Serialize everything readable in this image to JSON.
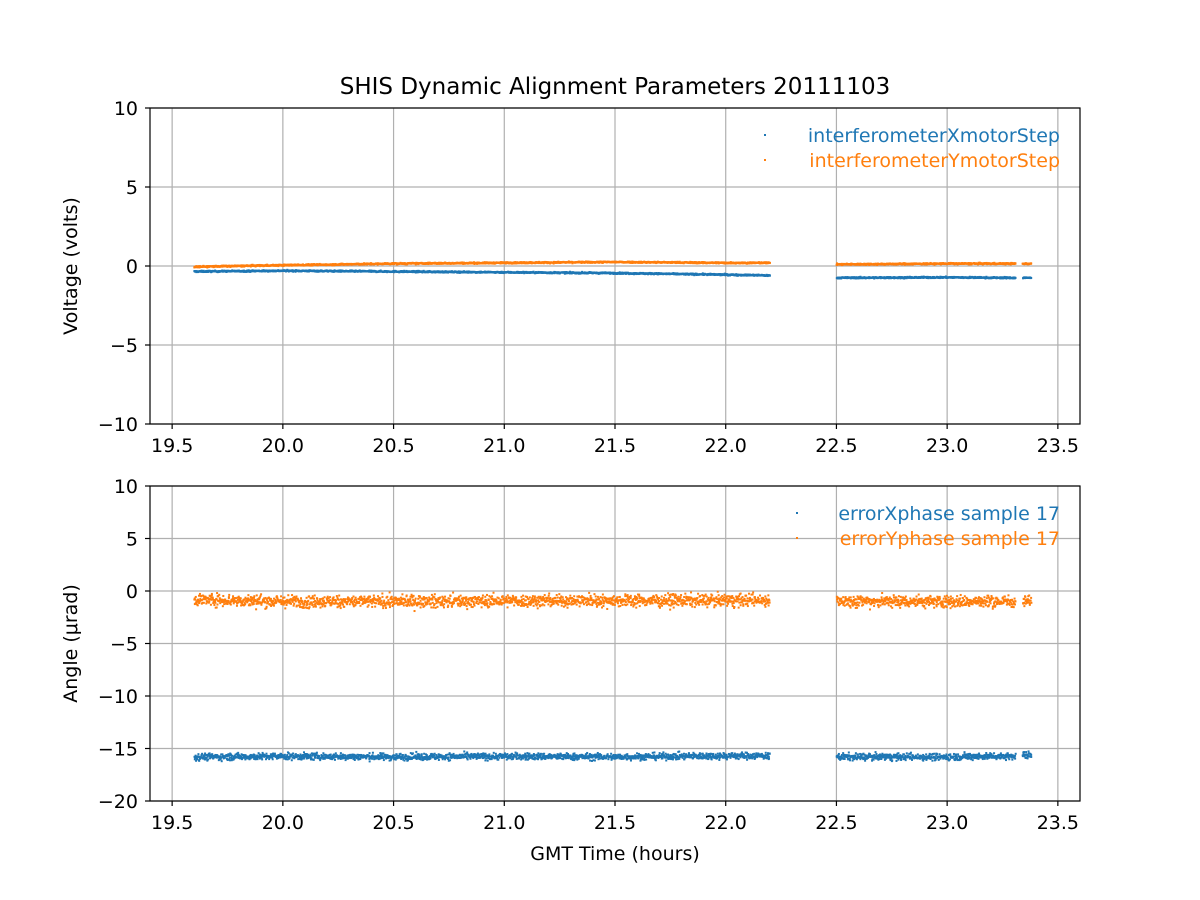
{
  "title": "SHIS Dynamic Alignment Parameters 20111103",
  "colors": {
    "blue": "#1f77b4",
    "orange": "#ff7f0e",
    "grid": "#b0b0b0"
  },
  "chart_data": [
    {
      "type": "scatter",
      "title": "SHIS Dynamic Alignment Parameters 20111103",
      "xlabel": "",
      "ylabel": "Voltage (volts)",
      "xlim": [
        19.4,
        23.6
      ],
      "ylim": [
        -10,
        10
      ],
      "xticks": [
        19.5,
        20.0,
        20.5,
        21.0,
        21.5,
        22.0,
        22.5,
        23.0,
        23.5
      ],
      "xtick_labels": [
        "19.5",
        "20.0",
        "20.5",
        "21.0",
        "21.5",
        "22.0",
        "22.5",
        "23.0",
        "23.5"
      ],
      "yticks": [
        10,
        5,
        0,
        -5,
        -10
      ],
      "ytick_labels": [
        "10",
        "5",
        "0",
        "−5",
        "−10"
      ],
      "grid": true,
      "legend_position": "top-right",
      "series": [
        {
          "name": "interferometerXmotorStep",
          "color": "#1f77b4",
          "x": [
            19.6,
            20.0,
            20.5,
            21.0,
            21.5,
            22.0,
            22.2,
            22.5,
            23.0,
            23.3,
            23.38
          ],
          "y": [
            -0.35,
            -0.3,
            -0.35,
            -0.4,
            -0.45,
            -0.55,
            -0.6,
            -0.75,
            -0.72,
            -0.75,
            -0.75
          ],
          "spread": 0.08,
          "gaps": [
            [
              22.2,
              22.5
            ]
          ]
        },
        {
          "name": "interferometerYmotorStep",
          "color": "#ff7f0e",
          "x": [
            19.6,
            20.0,
            20.5,
            21.0,
            21.5,
            22.0,
            22.2,
            22.5,
            23.0,
            23.3,
            23.38
          ],
          "y": [
            -0.05,
            0.05,
            0.15,
            0.2,
            0.25,
            0.2,
            0.2,
            0.1,
            0.15,
            0.15,
            0.15
          ],
          "spread": 0.08,
          "gaps": [
            [
              22.2,
              22.5
            ]
          ]
        }
      ]
    },
    {
      "type": "scatter",
      "title": "",
      "xlabel": "GMT Time (hours)",
      "ylabel": "Angle (μrad)",
      "xlim": [
        19.4,
        23.6
      ],
      "ylim": [
        -20,
        10
      ],
      "xticks": [
        19.5,
        20.0,
        20.5,
        21.0,
        21.5,
        22.0,
        22.5,
        23.0,
        23.5
      ],
      "xtick_labels": [
        "19.5",
        "20.0",
        "20.5",
        "21.0",
        "21.5",
        "22.0",
        "22.5",
        "23.0",
        "23.5"
      ],
      "yticks": [
        10,
        5,
        0,
        -5,
        -10,
        -15,
        -20
      ],
      "ytick_labels": [
        "10",
        "5",
        "0",
        "−5",
        "−10",
        "−15",
        "−20"
      ],
      "grid": true,
      "legend_position": "top-right",
      "series": [
        {
          "name": "errorXphase sample 17",
          "color": "#1f77b4",
          "x": [
            19.6,
            20.0,
            20.5,
            21.0,
            21.5,
            22.0,
            22.2,
            22.5,
            23.0,
            23.3,
            23.38
          ],
          "y": [
            -15.8,
            -15.75,
            -15.8,
            -15.75,
            -15.8,
            -15.7,
            -15.7,
            -15.8,
            -15.8,
            -15.7,
            -15.6
          ],
          "spread": 0.55,
          "gaps": [
            [
              22.2,
              22.5
            ]
          ]
        },
        {
          "name": "errorYphase sample 17",
          "color": "#ff7f0e",
          "x": [
            19.6,
            20.0,
            20.5,
            21.0,
            21.5,
            22.0,
            22.2,
            22.5,
            23.0,
            23.3,
            23.38
          ],
          "y": [
            -0.8,
            -1.0,
            -1.0,
            -0.95,
            -0.9,
            -0.9,
            -0.85,
            -0.95,
            -1.0,
            -1.0,
            -0.95
          ],
          "spread": 1.0,
          "gaps": [
            [
              22.2,
              22.5
            ]
          ]
        }
      ]
    }
  ]
}
